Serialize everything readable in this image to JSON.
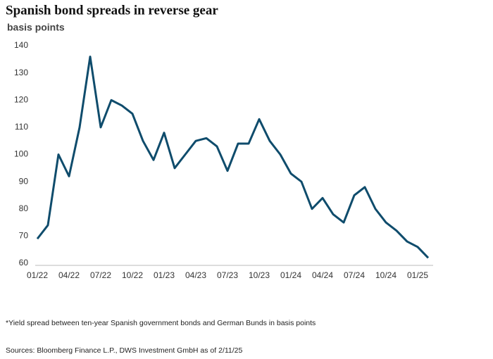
{
  "chart_data": {
    "type": "line",
    "title": "Spanish bond spreads in reverse gear",
    "subtitle": "basis points",
    "footnote": "*Yield spread between ten-year Spanish government bonds and German Bunds in basis points",
    "source": "Sources: Bloomberg Finance L.P., DWS Investment GmbH as of 2/11/25",
    "x": [
      "01/22",
      "02/22",
      "03/22",
      "04/22",
      "05/22",
      "06/22",
      "07/22",
      "08/22",
      "09/22",
      "10/22",
      "11/22",
      "12/22",
      "01/23",
      "02/23",
      "03/23",
      "04/23",
      "05/23",
      "06/23",
      "07/23",
      "08/23",
      "09/23",
      "10/23",
      "11/23",
      "12/23",
      "01/24",
      "02/24",
      "03/24",
      "04/24",
      "05/24",
      "06/24",
      "07/24",
      "08/24",
      "09/24",
      "10/24",
      "11/24",
      "12/24",
      "01/25",
      "02/25"
    ],
    "series": [
      {
        "name": "Spread",
        "color": "#0f4c6c",
        "values": [
          69,
          74,
          100,
          92,
          110,
          136,
          110,
          120,
          118,
          115,
          105,
          98,
          108,
          95,
          100,
          105,
          106,
          103,
          94,
          104,
          104,
          113,
          105,
          100,
          93,
          90,
          80,
          84,
          78,
          75,
          85,
          88,
          80,
          75,
          72,
          68,
          66,
          62
        ]
      }
    ],
    "xticks": [
      "01/22",
      "04/22",
      "07/22",
      "10/22",
      "01/23",
      "04/23",
      "07/23",
      "10/23",
      "01/24",
      "04/24",
      "07/24",
      "10/24",
      "01/25"
    ],
    "ylim": [
      60,
      140
    ],
    "yticks": [
      60,
      70,
      80,
      90,
      100,
      110,
      120,
      130,
      140
    ],
    "grid": false
  }
}
